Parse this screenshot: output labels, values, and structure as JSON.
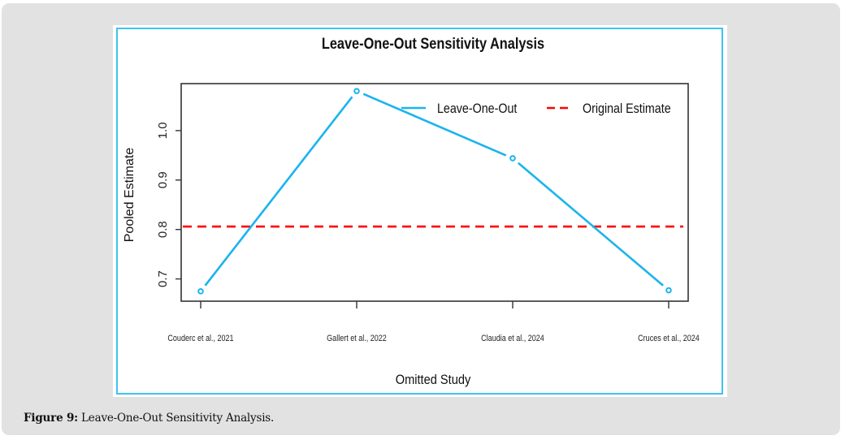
{
  "caption": {
    "label": "Figure 9:",
    "text": " Leave-One-Out Sensitivity Analysis."
  },
  "chart_data": {
    "type": "line",
    "title": "Leave-One-Out Sensitivity Analysis",
    "xlabel": "Omitted Study",
    "ylabel": "Pooled Estimate",
    "categories": [
      "Couderc et al., 2021",
      "Gallert et al., 2022",
      "Claudia et al., 2024",
      "Cruces et al., 2024"
    ],
    "series": [
      {
        "name": "Leave-One-Out",
        "values": [
          0.675,
          1.08,
          0.944,
          0.677
        ],
        "color": "#1ab4ee",
        "style": "solid",
        "markers": "open-circle"
      }
    ],
    "reference_lines": [
      {
        "name": "Original Estimate",
        "value": 0.806,
        "color": "#ff0000",
        "style": "dashed"
      }
    ],
    "yticks": [
      0.7,
      0.8,
      0.9,
      1.0
    ],
    "ytick_labels": [
      "0.7",
      "0.8",
      "0.9",
      "1.0"
    ],
    "ylim": [
      0.655,
      1.095
    ],
    "grid": false,
    "legend": {
      "position": "top-right",
      "entries": [
        "Leave-One-Out",
        "Original Estimate"
      ]
    }
  }
}
